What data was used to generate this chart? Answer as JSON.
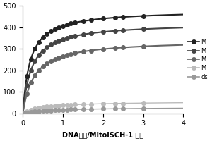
{
  "title": "",
  "xlabel": "DNA浓度/MitoISCH-1 浓度",
  "ylabel": "",
  "xlim": [
    0,
    4
  ],
  "ylim": [
    0,
    500
  ],
  "yticks": [
    0,
    100,
    200,
    300,
    400,
    500
  ],
  "xticks": [
    0,
    1,
    2,
    3,
    4
  ],
  "series": [
    {
      "label": "M",
      "color": "#222222",
      "marker_color": "#222222",
      "saturation": 480,
      "Kd": 0.18,
      "style": "-",
      "marker": "o",
      "linewidth": 1.5,
      "markersize": 4
    },
    {
      "label": "M",
      "color": "#444444",
      "marker_color": "#444444",
      "saturation": 420,
      "Kd": 0.22,
      "style": "-",
      "marker": "o",
      "linewidth": 1.5,
      "markersize": 4
    },
    {
      "label": "M",
      "color": "#666666",
      "marker_color": "#666666",
      "saturation": 340,
      "Kd": 0.28,
      "style": "-",
      "marker": "o",
      "linewidth": 1.5,
      "markersize": 4
    },
    {
      "label": "M",
      "color": "#bbbbbb",
      "marker_color": "#bbbbbb",
      "saturation": 55,
      "Kd": 0.5,
      "style": "-",
      "marker": "o",
      "linewidth": 1.0,
      "markersize": 4
    },
    {
      "label": "ds",
      "color": "#999999",
      "marker_color": "#999999",
      "saturation": 28,
      "Kd": 0.8,
      "style": "-",
      "marker": "o",
      "linewidth": 1.0,
      "markersize": 4
    }
  ],
  "background_color": "#ffffff",
  "legend_labels": [
    "M",
    "M",
    "M",
    "M",
    "ds"
  ],
  "legend_colors": [
    "#222222",
    "#444444",
    "#666666",
    "#bbbbbb",
    "#999999"
  ]
}
